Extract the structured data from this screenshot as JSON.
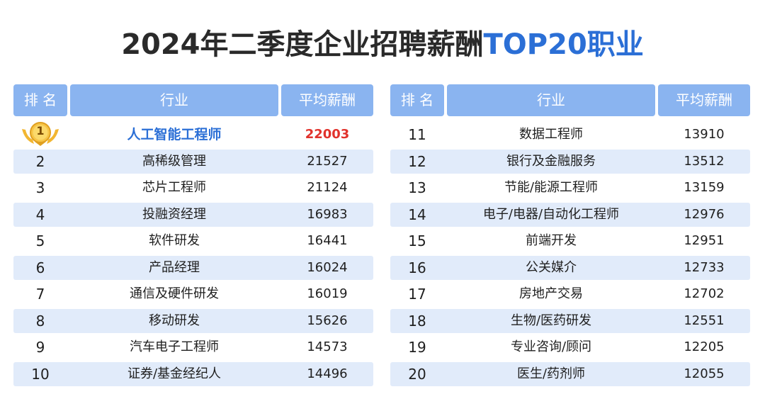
{
  "title": {
    "main": "2024年二季度企业招聘薪酬",
    "highlight": "TOP20职业"
  },
  "headers": {
    "rank": "排 名",
    "industry": "行业",
    "salary": "平均薪酬"
  },
  "colors": {
    "accent": "#2b6fd6",
    "header_bg": "#8ab4f0",
    "row_shade": "#e1ebfa",
    "top_salary": "#e1322c",
    "medal": "#f2b631"
  },
  "left_rows": [
    {
      "rank": "1",
      "name": "人工智能工程师",
      "salary": "22003"
    },
    {
      "rank": "2",
      "name": "高稀级管理",
      "salary": "21527"
    },
    {
      "rank": "3",
      "name": "芯片工程师",
      "salary": "21124"
    },
    {
      "rank": "4",
      "name": "投融资经理",
      "salary": "16983"
    },
    {
      "rank": "5",
      "name": "软件研发",
      "salary": "16441"
    },
    {
      "rank": "6",
      "name": "产品经理",
      "salary": "16024"
    },
    {
      "rank": "7",
      "name": "通信及硬件研发",
      "salary": "16019"
    },
    {
      "rank": "8",
      "name": "移动研发",
      "salary": "15626"
    },
    {
      "rank": "9",
      "name": "汽车电子工程师",
      "salary": "14573"
    },
    {
      "rank": "10",
      "name": "证券/基金经纪人",
      "salary": "14496"
    }
  ],
  "right_rows": [
    {
      "rank": "11",
      "name": "数据工程师",
      "salary": "13910"
    },
    {
      "rank": "12",
      "name": "银行及金融服务",
      "salary": "13512"
    },
    {
      "rank": "13",
      "name": "节能/能源工程师",
      "salary": "13159"
    },
    {
      "rank": "14",
      "name": "电子/电器/自动化工程师",
      "salary": "12976"
    },
    {
      "rank": "15",
      "name": "前端开发",
      "salary": "12951"
    },
    {
      "rank": "16",
      "name": "公关媒介",
      "salary": "12733"
    },
    {
      "rank": "17",
      "name": "房地产交易",
      "salary": "12702"
    },
    {
      "rank": "18",
      "name": "生物/医药研发",
      "salary": "12551"
    },
    {
      "rank": "19",
      "name": "专业咨询/顾问",
      "salary": "12205"
    },
    {
      "rank": "20",
      "name": "医生/药剂师",
      "salary": "12055"
    }
  ]
}
